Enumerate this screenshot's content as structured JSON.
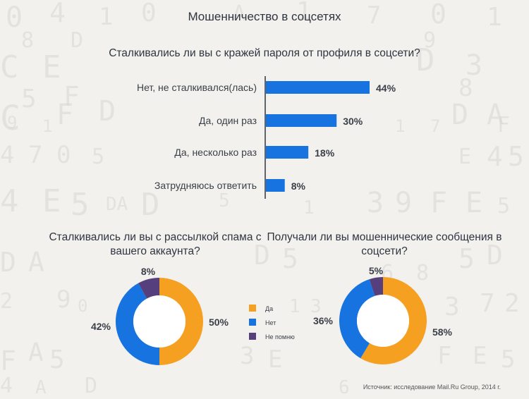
{
  "title": "Мошенничество в соцсетях",
  "source": "Источник: исследование Mail.Ru Group, 2014 г.",
  "colors": {
    "bar": "#1673e0",
    "yes": "#f5a020",
    "no": "#1673e0",
    "dontremember": "#553f7c"
  },
  "legend": {
    "yes": "Да",
    "no": "Нет",
    "dontremember": "Не помню"
  },
  "chart_data": [
    {
      "type": "bar",
      "title": "Сталкивались ли вы с кражей пароля от профиля в соцсети?",
      "categories": [
        "Нет, не сталкивался(лась)",
        "Да, один раз",
        "Да, несколько раз",
        "Затрудняюсь ответить"
      ],
      "values": [
        44,
        30,
        18,
        8
      ],
      "value_labels": [
        "44%",
        "30%",
        "18%",
        "8%"
      ],
      "orientation": "horizontal"
    },
    {
      "type": "pie",
      "title": "Сталкивались ли вы с рассылкой спама с вашего аккаунта?",
      "categories": [
        "Да",
        "Нет",
        "Не помню"
      ],
      "values": [
        50,
        42,
        8
      ],
      "value_labels": [
        "50%",
        "42%",
        "8%"
      ]
    },
    {
      "type": "pie",
      "title": "Получали ли вы мошеннические сообщения в соцсети?",
      "categories": [
        "Да",
        "Нет",
        "Не помню"
      ],
      "values": [
        58,
        36,
        5
      ],
      "value_labels": [
        "58%",
        "36%",
        "5%"
      ]
    }
  ]
}
